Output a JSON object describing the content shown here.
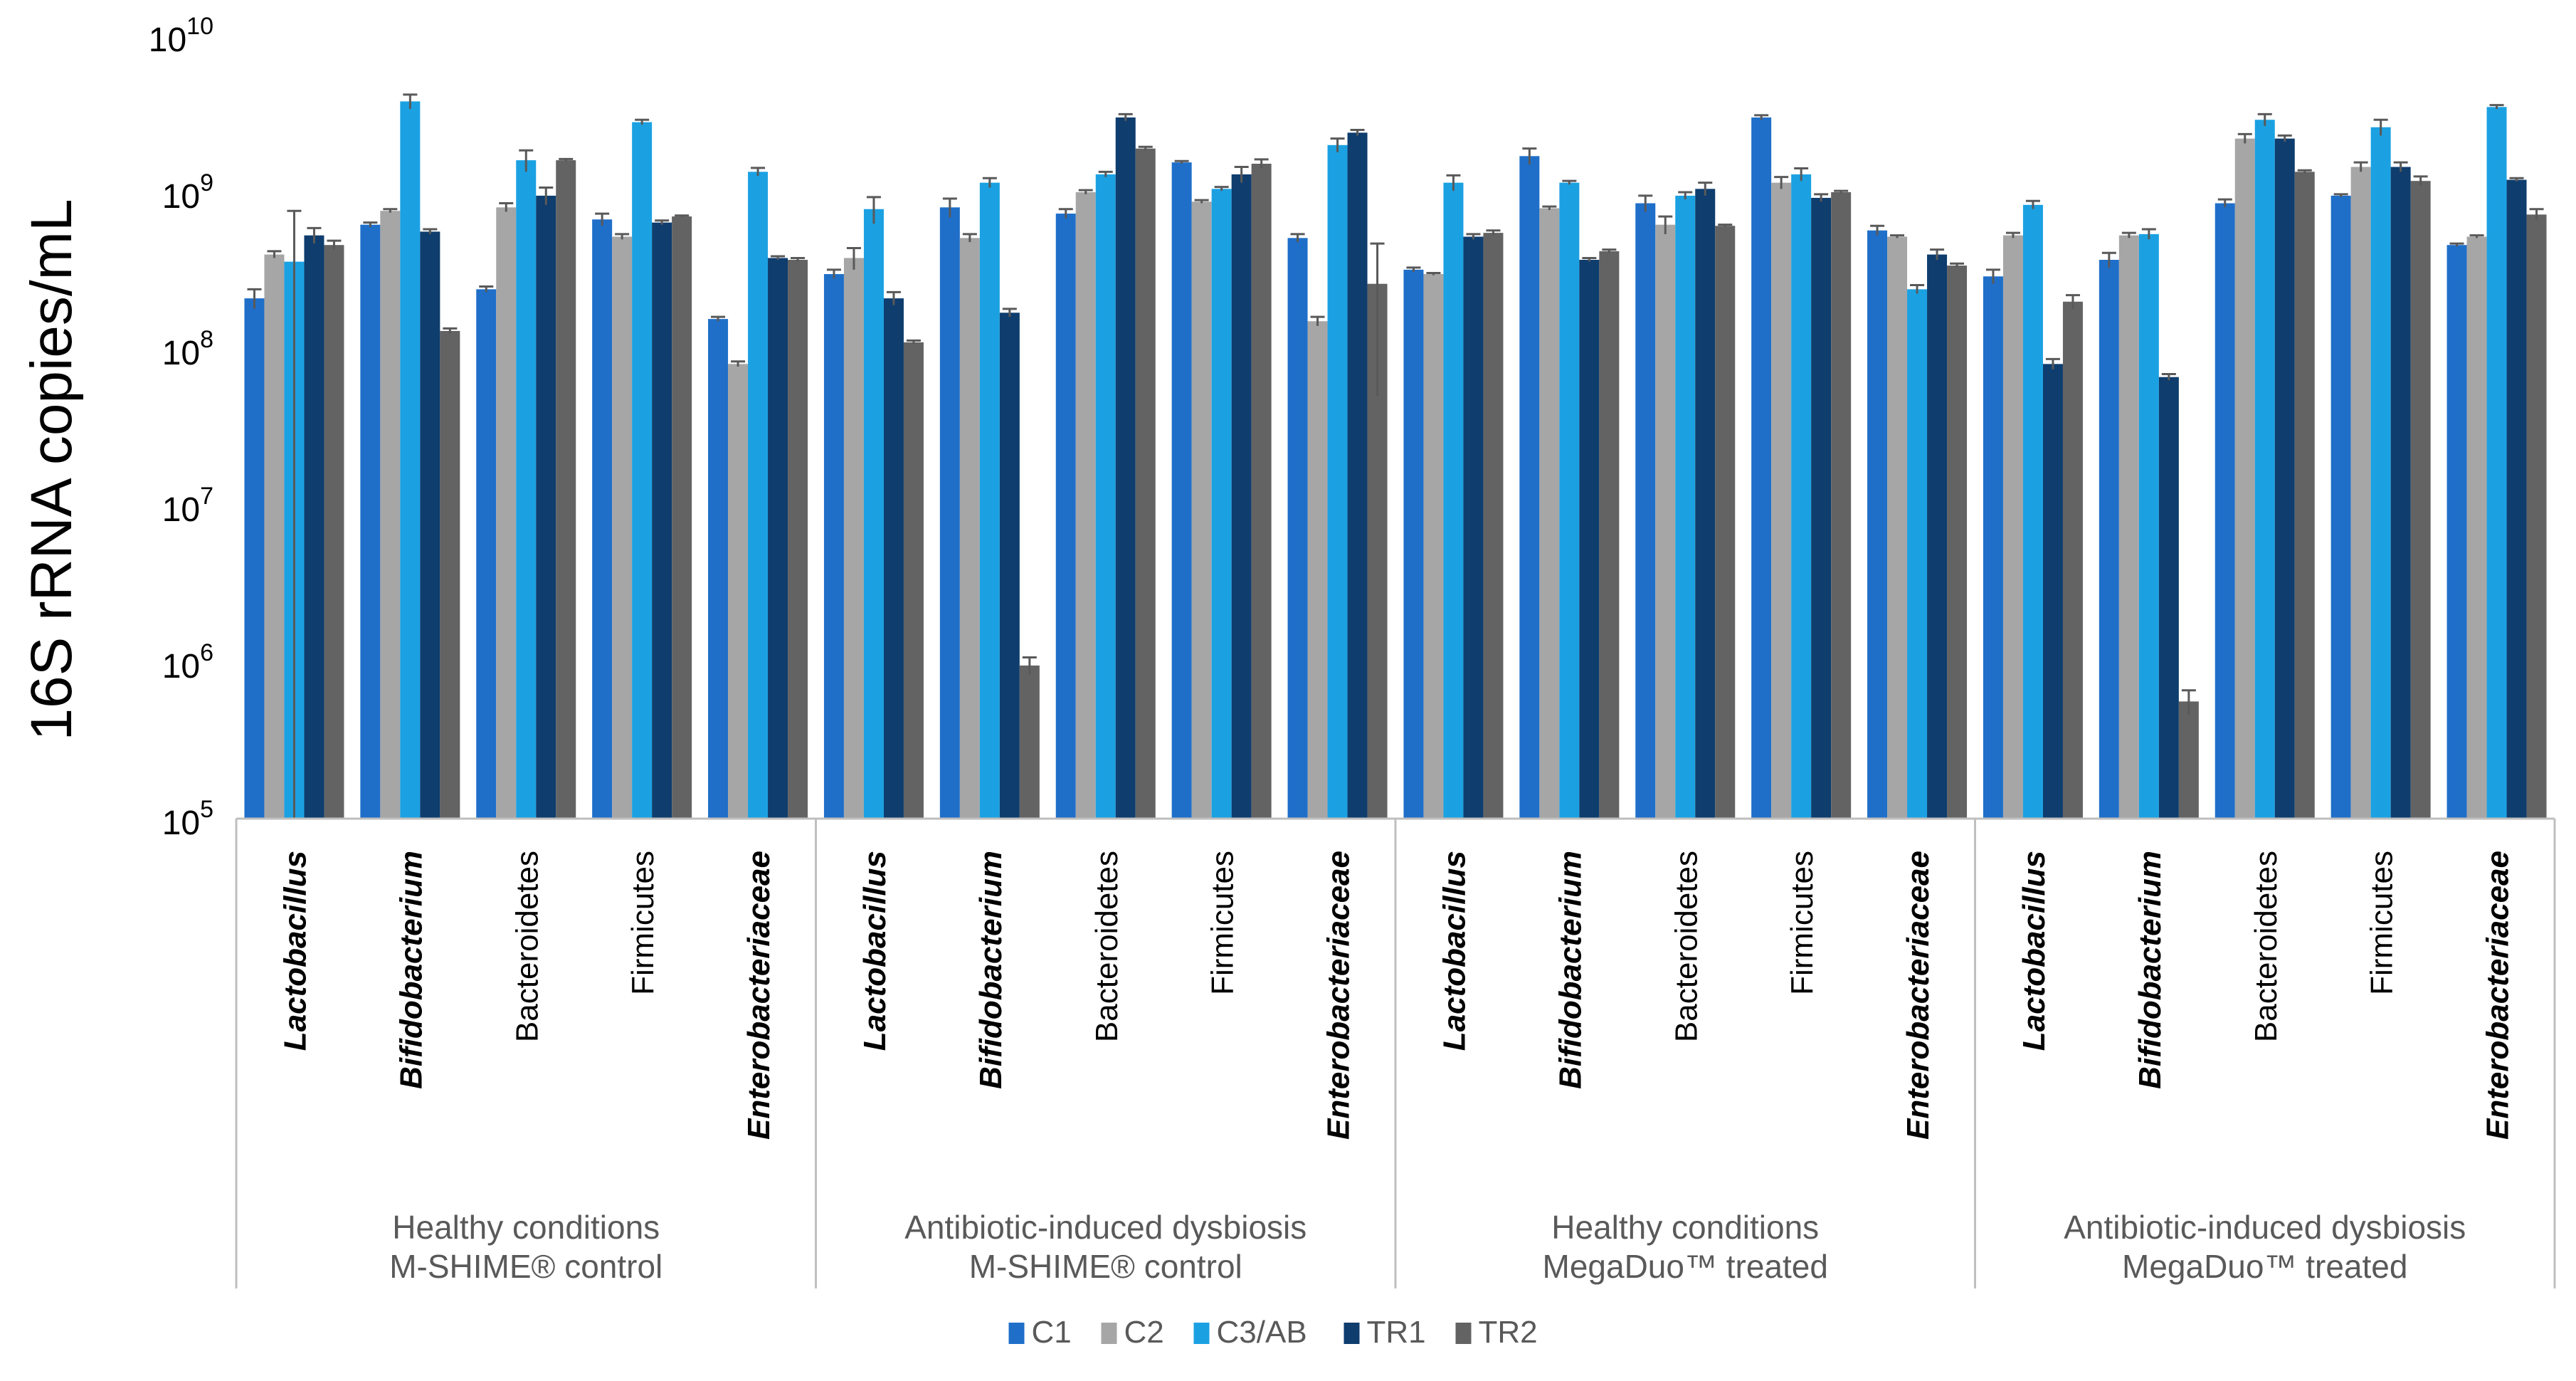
{
  "chart_data": {
    "type": "bar",
    "scale": "log",
    "ylabel": "16S rRNA copies/mL",
    "ylim": [
      100000,
      10000000000
    ],
    "y_ticks": [
      {
        "value": 100000,
        "base": "10",
        "exp": "5"
      },
      {
        "value": 1000000,
        "base": "10",
        "exp": "6"
      },
      {
        "value": 10000000,
        "base": "10",
        "exp": "7"
      },
      {
        "value": 100000000,
        "base": "10",
        "exp": "8"
      },
      {
        "value": 1000000000,
        "base": "10",
        "exp": "9"
      },
      {
        "value": 10000000000,
        "base": "10",
        "exp": "10"
      }
    ],
    "grid": false,
    "legend_position": "bottom",
    "series": [
      {
        "name": "C1",
        "color": "#1f6fc9"
      },
      {
        "name": "C2",
        "color": "#a6a6a6"
      },
      {
        "name": "C3/AB",
        "color": "#1ba1e2"
      },
      {
        "name": "TR1",
        "color": "#0e3d6e"
      },
      {
        "name": "TR2",
        "color": "#636363"
      }
    ],
    "groups": [
      {
        "label_line1": "Healthy conditions",
        "label_line2": "M-SHIME® control",
        "taxa": [
          {
            "name": "Lactobacillus",
            "italic": true,
            "values": [
              210000000,
              400000000,
              360000000,
              530000000,
              460000000
            ],
            "errors": [
              30000000,
              20000000,
              400000000,
              60000000,
              30000000
            ]
          },
          {
            "name": "Bifidobacterium",
            "italic": true,
            "values": [
              620000000,
              760000000,
              3800000000,
              560000000,
              130000000
            ],
            "errors": [
              20000000,
              20000000,
              400000000,
              20000000,
              5000000
            ]
          },
          {
            "name": "Bacteroidetes",
            "italic": false,
            "values": [
              240000000,
              800000000,
              1600000000,
              950000000,
              1600000000
            ],
            "errors": [
              10000000,
              50000000,
              250000000,
              120000000,
              30000000
            ]
          },
          {
            "name": "Firmicutes",
            "italic": false,
            "values": [
              670000000,
              520000000,
              2800000000,
              640000000,
              700000000
            ],
            "errors": [
              60000000,
              20000000,
              100000000,
              20000000,
              10000000
            ]
          },
          {
            "name": "Enterobacteriaceae",
            "italic": true,
            "values": [
              155000000,
              80000000,
              1350000000,
              380000000,
              370000000
            ],
            "errors": [
              5000000,
              3000000,
              80000000,
              10000000,
              10000000
            ]
          }
        ]
      },
      {
        "label_line1": "Antibiotic-induced dysbiosis",
        "label_line2": "M-SHIME® control",
        "taxa": [
          {
            "name": "Lactobacillus",
            "italic": true,
            "values": [
              300000000,
              380000000,
              780000000,
              210000000,
              110000000
            ],
            "errors": [
              20000000,
              60000000,
              150000000,
              20000000,
              3000000
            ]
          },
          {
            "name": "Bifidobacterium",
            "italic": true,
            "values": [
              800000000,
              510000000,
              1150000000,
              170000000,
              950000
            ],
            "errors": [
              110000000,
              30000000,
              80000000,
              10000000,
              120000
            ]
          },
          {
            "name": "Bacteroidetes",
            "italic": false,
            "values": [
              730000000,
              1000000000,
              1300000000,
              3000000000,
              1900000000
            ],
            "errors": [
              50000000,
              30000000,
              50000000,
              150000000,
              50000000
            ]
          },
          {
            "name": "Firmicutes",
            "italic": false,
            "values": [
              1550000000,
              870000000,
              1050000000,
              1300000000,
              1520000000
            ],
            "errors": [
              30000000,
              20000000,
              30000000,
              150000000,
              100000000
            ]
          },
          {
            "name": "Enterobacteriaceae",
            "italic": true,
            "values": [
              510000000,
              150000000,
              2000000000,
              2400000000,
              260000000
            ],
            "errors": [
              30000000,
              10000000,
              200000000,
              100000000,
              210000000
            ]
          }
        ]
      },
      {
        "label_line1": "Healthy conditions",
        "label_line2": "MegaDuo™ treated",
        "taxa": [
          {
            "name": "Lactobacillus",
            "italic": true,
            "values": [
              320000000,
              300000000,
              1150000000,
              520000000,
              550000000
            ],
            "errors": [
              10000000,
              5000000,
              130000000,
              20000000,
              20000000
            ]
          },
          {
            "name": "Bifidobacterium",
            "italic": true,
            "values": [
              1700000000,
              790000000,
              1150000000,
              370000000,
              420000000
            ],
            "errors": [
              200000000,
              20000000,
              30000000,
              10000000,
              10000000
            ]
          },
          {
            "name": "Bacteroidetes",
            "italic": false,
            "values": [
              850000000,
              620000000,
              950000000,
              1050000000,
              610000000
            ],
            "errors": [
              100000000,
              80000000,
              50000000,
              100000000,
              10000000
            ]
          },
          {
            "name": "Firmicutes",
            "italic": false,
            "values": [
              3000000000,
              1150000000,
              1300000000,
              920000000,
              1000000000
            ],
            "errors": [
              100000000,
              100000000,
              120000000,
              50000000,
              20000000
            ]
          },
          {
            "name": "Enterobacteriaceae",
            "italic": true,
            "values": [
              570000000,
              520000000,
              240000000,
              400000000,
              340000000
            ],
            "errors": [
              40000000,
              10000000,
              15000000,
              30000000,
              10000000
            ]
          }
        ]
      },
      {
        "label_line1": "Antibiotic-induced dysbiosis",
        "label_line2": "MegaDuo™ treated",
        "taxa": [
          {
            "name": "Lactobacillus",
            "italic": true,
            "values": [
              290000000,
              530000000,
              830000000,
              80000000,
              200000000
            ],
            "errors": [
              30000000,
              20000000,
              50000000,
              6000000,
              20000000
            ]
          },
          {
            "name": "Bifidobacterium",
            "italic": true,
            "values": [
              370000000,
              530000000,
              540000000,
              66000000,
              560000
            ],
            "errors": [
              40000000,
              20000000,
              40000000,
              3000000,
              100000
            ]
          },
          {
            "name": "Bacteroidetes",
            "italic": false,
            "values": [
              850000000,
              2200000000,
              2900000000,
              2200000000,
              1350000000
            ],
            "errors": [
              50000000,
              150000000,
              250000000,
              100000000,
              30000000
            ]
          },
          {
            "name": "Firmicutes",
            "italic": false,
            "values": [
              950000000,
              1450000000,
              2600000000,
              1450000000,
              1180000000
            ],
            "errors": [
              20000000,
              100000000,
              300000000,
              100000000,
              80000000
            ]
          },
          {
            "name": "Enterobacteriaceae",
            "italic": true,
            "values": [
              460000000,
              520000000,
              3500000000,
              1200000000,
              720000000
            ],
            "errors": [
              10000000,
              10000000,
              100000000,
              30000000,
              60000000
            ]
          }
        ]
      }
    ]
  }
}
